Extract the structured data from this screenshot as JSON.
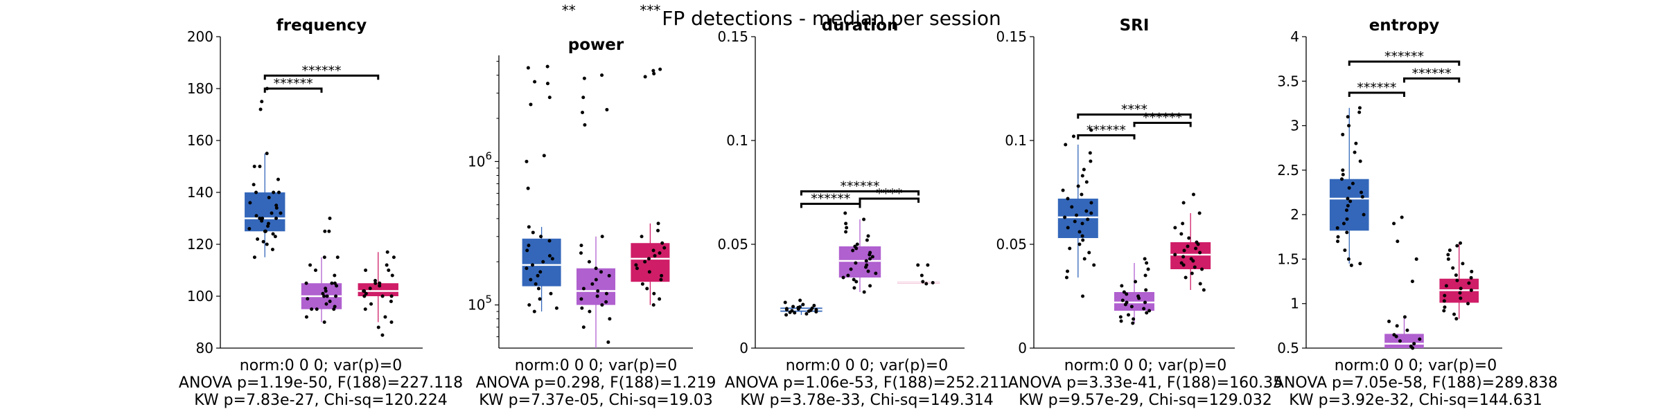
{
  "figure_title": "FP detections - median per session",
  "colors": {
    "g1": "#3467BA",
    "g2": "#B060CF",
    "g3": "#CF1D67",
    "bar": "#000000"
  },
  "chart_data": [
    {
      "type": "box",
      "title": "frequency",
      "yscale": "linear",
      "ylim": [
        80,
        200
      ],
      "yticks": [
        80,
        100,
        120,
        140,
        160,
        180,
        200
      ],
      "ytick_labels": [
        "80",
        "100",
        "120",
        "140",
        "160",
        "180",
        "200"
      ],
      "groups": [
        {
          "color": "#3467BA",
          "q1": 125,
          "median": 130,
          "q3": 140,
          "whisker_low": 115,
          "whisker_high": 155,
          "points": [
            115,
            118,
            120,
            121,
            122,
            123,
            124,
            125,
            125,
            125,
            126,
            127,
            128,
            129,
            130,
            130,
            130,
            131,
            132,
            132,
            134,
            135,
            136,
            138,
            140,
            140,
            140,
            143,
            145,
            150,
            150,
            155,
            172,
            175,
            180
          ]
        },
        {
          "color": "#B060CF",
          "q1": 95,
          "median": 100,
          "q3": 105,
          "whisker_low": 90,
          "whisker_high": 115,
          "points": [
            90,
            92,
            95,
            95,
            95,
            96,
            97,
            98,
            99,
            100,
            100,
            100,
            101,
            102,
            103,
            104,
            105,
            105,
            105,
            108,
            110,
            112,
            115,
            115,
            125,
            125,
            130
          ]
        },
        {
          "color": "#CF1D67",
          "q1": 100,
          "median": 102,
          "q3": 105,
          "whisker_low": 90,
          "whisker_high": 117,
          "points": [
            85,
            88,
            90,
            92,
            95,
            97,
            98,
            100,
            100,
            100,
            101,
            102,
            102,
            103,
            104,
            105,
            105,
            106,
            108,
            110,
            110,
            112,
            115,
            117
          ]
        }
      ],
      "brackets": [
        {
          "from": 0,
          "to": 1,
          "y": 180,
          "label": "******"
        },
        {
          "from": 0,
          "to": 2,
          "y": 185,
          "label": "******"
        }
      ],
      "top_annotations": [],
      "stats": [
        "norm:0  0  0; var(p)=0",
        "ANOVA p=1.19e-50, F(188)=227.118",
        "KW p=7.83e-27, Chi-sq=120.224"
      ]
    },
    {
      "type": "box",
      "title": "power",
      "yscale": "log",
      "ylim": [
        50000,
        5500000
      ],
      "yticks": [
        100000,
        1000000
      ],
      "ytick_labels": [
        "10^5",
        "10^6"
      ],
      "groups": [
        {
          "color": "#3467BA",
          "q1": 135000,
          "median": 190000,
          "q3": 290000,
          "whisker_low": 90000,
          "whisker_high": 350000,
          "points": [
            90000,
            95000,
            100000,
            110000,
            120000,
            130000,
            140000,
            150000,
            160000,
            170000,
            180000,
            190000,
            200000,
            210000,
            220000,
            240000,
            260000,
            280000,
            300000,
            320000,
            350000,
            650000,
            1000000,
            1100000,
            2500000,
            2800000,
            3500000,
            3600000,
            4500000,
            4600000
          ]
        },
        {
          "color": "#B060CF",
          "q1": 100000,
          "median": 125000,
          "q3": 180000,
          "whisker_low": 50000,
          "whisker_high": 300000,
          "points": [
            55000,
            70000,
            80000,
            90000,
            95000,
            100000,
            105000,
            110000,
            115000,
            120000,
            125000,
            130000,
            140000,
            150000,
            160000,
            170000,
            180000,
            200000,
            230000,
            260000,
            300000,
            1800000,
            2200000,
            2300000,
            2800000,
            3800000,
            4000000
          ]
        },
        {
          "color": "#CF1D67",
          "q1": 145000,
          "median": 210000,
          "q3": 270000,
          "whisker_low": 100000,
          "whisker_high": 370000,
          "points": [
            100000,
            110000,
            120000,
            130000,
            140000,
            150000,
            160000,
            170000,
            180000,
            190000,
            200000,
            210000,
            220000,
            230000,
            240000,
            250000,
            270000,
            300000,
            330000,
            370000,
            3900000,
            4100000,
            4300000,
            4400000
          ]
        }
      ],
      "brackets": [],
      "top_annotations": [
        {
          "group": 0.5,
          "label": "**"
        },
        {
          "group": 2,
          "label": "***"
        }
      ],
      "stats": [
        "norm:0  0  0; var(p)=0",
        "ANOVA p=0.298, F(188)=1.219",
        "KW p=7.37e-05, Chi-sq=19.03"
      ]
    },
    {
      "type": "box",
      "title": "duration",
      "yscale": "linear",
      "ylim": [
        0,
        0.15
      ],
      "yticks": [
        0,
        0.05,
        0.1,
        0.15
      ],
      "ytick_labels": [
        "0",
        "0.05",
        "0.1",
        "0.15"
      ],
      "groups": [
        {
          "color": "#3467BA",
          "q1": 0.0175,
          "median": 0.0185,
          "q3": 0.0195,
          "whisker_low": 0.016,
          "whisker_high": 0.021,
          "points": [
            0.016,
            0.0165,
            0.017,
            0.0172,
            0.0175,
            0.0178,
            0.018,
            0.0182,
            0.0185,
            0.0185,
            0.0188,
            0.019,
            0.0192,
            0.0195,
            0.0198,
            0.02,
            0.0205,
            0.021,
            0.022,
            0.023
          ]
        },
        {
          "color": "#B060CF",
          "q1": 0.034,
          "median": 0.042,
          "q3": 0.049,
          "whisker_low": 0.027,
          "whisker_high": 0.062,
          "points": [
            0.027,
            0.029,
            0.03,
            0.032,
            0.033,
            0.034,
            0.035,
            0.036,
            0.037,
            0.038,
            0.039,
            0.04,
            0.041,
            0.042,
            0.043,
            0.044,
            0.045,
            0.046,
            0.047,
            0.048,
            0.049,
            0.05,
            0.052,
            0.054,
            0.056,
            0.058,
            0.06,
            0.062,
            0.065
          ]
        },
        {
          "color": "#CF1D67",
          "q1": 0.031,
          "median": 0.0315,
          "q3": 0.032,
          "whisker_low": 0.031,
          "whisker_high": 0.032,
          "points": [
            0.031,
            0.0315,
            0.032,
            0.035,
            0.04,
            0.04
          ]
        }
      ],
      "brackets": [
        {
          "from": 0,
          "to": 1,
          "y": 0.0695,
          "label": "******"
        },
        {
          "from": 1,
          "to": 2,
          "y": 0.072,
          "label": "****"
        },
        {
          "from": 0,
          "to": 2,
          "y": 0.0755,
          "label": "******"
        }
      ],
      "top_annotations": [],
      "stats": [
        "norm:0  0  0; var(p)=0",
        "ANOVA p=1.06e-53, F(188)=252.211",
        "KW p=3.78e-33, Chi-sq=149.314"
      ]
    },
    {
      "type": "box",
      "title": "SRI",
      "yscale": "linear",
      "ylim": [
        0,
        0.15
      ],
      "yticks": [
        0,
        0.05,
        0.1,
        0.15
      ],
      "ytick_labels": [
        "0",
        "0.05",
        "0.1",
        "0.15"
      ],
      "groups": [
        {
          "color": "#3467BA",
          "q1": 0.053,
          "median": 0.063,
          "q3": 0.072,
          "whisker_low": 0.034,
          "whisker_high": 0.098,
          "points": [
            0.025,
            0.034,
            0.037,
            0.04,
            0.043,
            0.046,
            0.048,
            0.05,
            0.052,
            0.054,
            0.056,
            0.058,
            0.06,
            0.061,
            0.062,
            0.063,
            0.064,
            0.065,
            0.066,
            0.068,
            0.07,
            0.072,
            0.074,
            0.076,
            0.078,
            0.08,
            0.083,
            0.086,
            0.09,
            0.094,
            0.098,
            0.102,
            0.105
          ]
        },
        {
          "color": "#B060CF",
          "q1": 0.018,
          "median": 0.022,
          "q3": 0.027,
          "whisker_low": 0.012,
          "whisker_high": 0.041,
          "points": [
            0.012,
            0.013,
            0.014,
            0.015,
            0.016,
            0.017,
            0.018,
            0.019,
            0.02,
            0.021,
            0.022,
            0.022,
            0.023,
            0.024,
            0.025,
            0.026,
            0.027,
            0.028,
            0.03,
            0.032,
            0.035,
            0.038,
            0.041,
            0.043
          ]
        },
        {
          "color": "#CF1D67",
          "q1": 0.038,
          "median": 0.045,
          "q3": 0.051,
          "whisker_low": 0.028,
          "whisker_high": 0.065,
          "points": [
            0.028,
            0.031,
            0.034,
            0.036,
            0.038,
            0.039,
            0.04,
            0.041,
            0.042,
            0.043,
            0.044,
            0.045,
            0.046,
            0.047,
            0.048,
            0.049,
            0.05,
            0.051,
            0.053,
            0.055,
            0.058,
            0.06,
            0.065,
            0.07,
            0.074
          ]
        }
      ],
      "brackets": [
        {
          "from": 0,
          "to": 1,
          "y": 0.1025,
          "label": "******"
        },
        {
          "from": 1,
          "to": 2,
          "y": 0.1085,
          "label": "******"
        },
        {
          "from": 0,
          "to": 2,
          "y": 0.1125,
          "label": "****"
        }
      ],
      "top_annotations": [],
      "stats": [
        "norm:0  0  0; var(p)=0",
        "ANOVA p=3.33e-41, F(188)=160.35",
        "KW p=9.57e-29, Chi-sq=129.032"
      ]
    },
    {
      "type": "box",
      "title": "entropy",
      "yscale": "linear",
      "ylim": [
        0.5,
        4
      ],
      "yticks": [
        0.5,
        1,
        1.5,
        2,
        2.5,
        3,
        3.5,
        4
      ],
      "ytick_labels": [
        "0.5",
        "1",
        "1.5",
        "2",
        "2.5",
        "3",
        "3.5",
        "4"
      ],
      "groups": [
        {
          "color": "#3467BA",
          "q1": 1.82,
          "median": 2.18,
          "q3": 2.4,
          "whisker_low": 1.45,
          "whisker_high": 3.2,
          "points": [
            1.43,
            1.45,
            1.5,
            1.6,
            1.7,
            1.75,
            1.8,
            1.85,
            1.9,
            1.95,
            2.0,
            2.05,
            2.1,
            2.15,
            2.18,
            2.2,
            2.25,
            2.3,
            2.35,
            2.4,
            2.45,
            2.5,
            2.6,
            2.7,
            2.8,
            2.9,
            3.0,
            3.1,
            3.15,
            3.2
          ]
        },
        {
          "color": "#B060CF",
          "q1": 0.5,
          "median": 0.55,
          "q3": 0.66,
          "whisker_low": 0.5,
          "whisker_high": 0.85,
          "points": [
            0.5,
            0.52,
            0.55,
            0.58,
            0.6,
            0.63,
            0.65,
            0.7,
            0.75,
            0.8,
            0.85,
            1.25,
            1.5,
            1.7,
            1.9,
            1.97
          ]
        },
        {
          "color": "#CF1D67",
          "q1": 1.01,
          "median": 1.15,
          "q3": 1.28,
          "whisker_low": 0.83,
          "whisker_high": 1.68,
          "points": [
            0.83,
            0.88,
            0.92,
            0.96,
            1.0,
            1.03,
            1.06,
            1.09,
            1.12,
            1.15,
            1.17,
            1.2,
            1.23,
            1.26,
            1.29,
            1.32,
            1.36,
            1.4,
            1.45,
            1.5,
            1.55,
            1.6,
            1.65,
            1.68
          ]
        }
      ],
      "brackets": [
        {
          "from": 0,
          "to": 1,
          "y": 3.37,
          "label": "******"
        },
        {
          "from": 1,
          "to": 2,
          "y": 3.53,
          "label": "******"
        },
        {
          "from": 0,
          "to": 2,
          "y": 3.72,
          "label": "******"
        }
      ],
      "top_annotations": [],
      "stats": [
        "norm:0  0  0; var(p)=0",
        "ANOVA p=7.05e-58, F(188)=289.838",
        "KW p=3.92e-32, Chi-sq=144.631"
      ]
    }
  ]
}
